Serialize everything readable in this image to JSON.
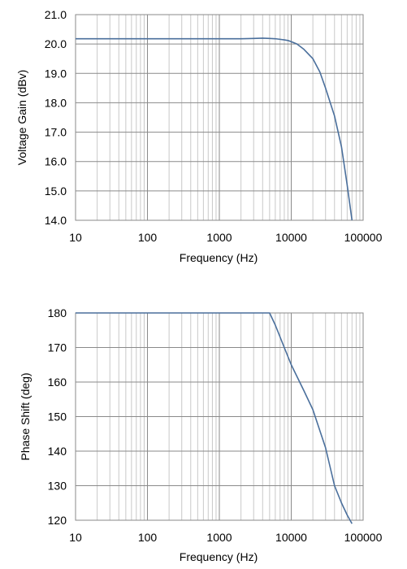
{
  "chart_data": [
    {
      "type": "line",
      "xscale": "log",
      "xlim": [
        10,
        100000
      ],
      "ylim": [
        14.0,
        21.0
      ],
      "xlabel": "Frequency (Hz)",
      "ylabel": "Voltage Gain (dBv)",
      "xticks": [
        "10",
        "100",
        "1000",
        "10000",
        "100000"
      ],
      "yticks": [
        "14.0",
        "15.0",
        "16.0",
        "17.0",
        "18.0",
        "19.0",
        "20.0",
        "21.0"
      ],
      "grid": true,
      "line_color": "#4a6f9c",
      "series": [
        {
          "x": [
            10,
            100,
            1000,
            2000,
            3000,
            4000,
            5000,
            6000,
            7000,
            8000,
            9000,
            10000,
            12000,
            15000,
            20000,
            25000,
            30000,
            40000,
            50000,
            60000,
            70000
          ],
          "y": [
            20.18,
            20.18,
            20.18,
            20.18,
            20.19,
            20.2,
            20.19,
            20.18,
            20.16,
            20.14,
            20.12,
            20.08,
            20.0,
            19.82,
            19.5,
            19.05,
            18.5,
            17.55,
            16.5,
            15.2,
            14.0
          ]
        }
      ]
    },
    {
      "type": "line",
      "xscale": "log",
      "xlim": [
        10,
        100000
      ],
      "ylim": [
        120,
        180
      ],
      "xlabel": "Frequency (Hz)",
      "ylabel": "Phase Shift (deg)",
      "xticks": [
        "10",
        "100",
        "1000",
        "10000",
        "100000"
      ],
      "yticks": [
        "120",
        "130",
        "140",
        "150",
        "160",
        "170",
        "180"
      ],
      "grid": true,
      "line_color": "#4a6f9c",
      "series": [
        {
          "x": [
            10,
            100,
            1000,
            5000,
            6000,
            8000,
            10000,
            15000,
            20000,
            30000,
            40000,
            50000,
            60000,
            70000
          ],
          "y": [
            180,
            180,
            180,
            180,
            176.5,
            170,
            165,
            157.5,
            152,
            141,
            130,
            125,
            121.5,
            119
          ]
        }
      ]
    }
  ]
}
